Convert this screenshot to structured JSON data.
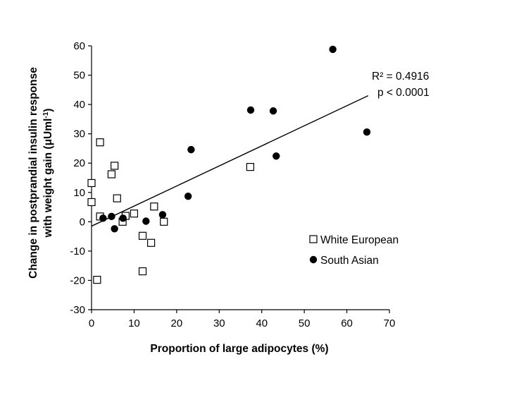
{
  "chart_data": {
    "type": "scatter",
    "xlabel": "Proportion of large adipocytes (%)",
    "ylabel_line1": "Change in postprandial insulin response",
    "ylabel_line2_prefix": "with weight gain (μUml",
    "ylabel_line2_sup": "-1",
    "ylabel_line2_suffix": ")",
    "xlim": [
      0,
      70
    ],
    "ylim": [
      -30,
      60
    ],
    "xticks": [
      0,
      10,
      20,
      30,
      40,
      50,
      60,
      70
    ],
    "yticks": [
      -30,
      -20,
      -10,
      0,
      10,
      20,
      30,
      40,
      50,
      60
    ],
    "grid": false,
    "legend_position": "right",
    "series": [
      {
        "name": "White European",
        "marker": "open-square",
        "color": "#000000",
        "points": [
          [
            0.0,
            13.2
          ],
          [
            0.0,
            6.7
          ],
          [
            1.3,
            -19.8
          ],
          [
            2.0,
            27.1
          ],
          [
            2.0,
            1.8
          ],
          [
            4.7,
            16.2
          ],
          [
            5.4,
            19.1
          ],
          [
            6.0,
            8.0
          ],
          [
            7.3,
            0.0
          ],
          [
            8.0,
            2.0
          ],
          [
            10.0,
            2.8
          ],
          [
            12.0,
            -4.8
          ],
          [
            12.0,
            -16.9
          ],
          [
            14.0,
            -7.2
          ],
          [
            14.7,
            5.2
          ],
          [
            17.0,
            0.0
          ],
          [
            37.3,
            18.7
          ]
        ]
      },
      {
        "name": "South Asian",
        "marker": "filled-circle",
        "color": "#000000",
        "points": [
          [
            2.7,
            1.2
          ],
          [
            4.7,
            1.8
          ],
          [
            5.4,
            -2.4
          ],
          [
            7.4,
            1.2
          ],
          [
            12.8,
            0.2
          ],
          [
            16.7,
            2.4
          ],
          [
            22.7,
            8.7
          ],
          [
            23.4,
            24.6
          ],
          [
            37.4,
            38.1
          ],
          [
            42.7,
            37.8
          ],
          [
            43.4,
            22.4
          ],
          [
            56.7,
            58.8
          ],
          [
            64.7,
            30.6
          ]
        ]
      }
    ],
    "trendline": {
      "x": [
        0,
        65
      ],
      "y": [
        -1.5,
        43.0
      ]
    },
    "annotations": [
      "R² = 0.4916",
      "p < 0.0001"
    ]
  }
}
